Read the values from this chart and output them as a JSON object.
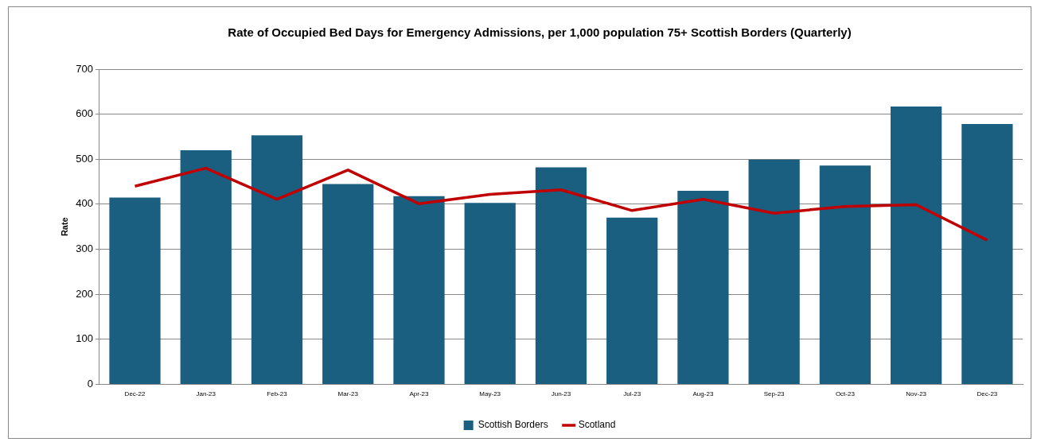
{
  "chart_data": {
    "type": "bar",
    "title": "Rate of Occupied Bed Days for Emergency Admissions, per 1,000 population 75+ Scottish Borders (Quarterly)",
    "ylabel": "Rate",
    "categories": [
      "Dec-22",
      "Jan-23",
      "Feb-23",
      "Mar-23",
      "Apr-23",
      "May-23",
      "Jun-23",
      "Jul-23",
      "Aug-23",
      "Sep-23",
      "Oct-23",
      "Nov-23",
      "Dec-23"
    ],
    "series": [
      {
        "name": "Scottish Borders",
        "color": "#1a5f80",
        "values": [
          415,
          520,
          553,
          445,
          418,
          403,
          482,
          370,
          430,
          499,
          486,
          617,
          578
        ]
      },
      {
        "name": "Scotland",
        "type": "line",
        "color": "#c00000",
        "values": [
          440,
          480,
          411,
          476,
          401,
          422,
          432,
          386,
          411,
          380,
          395,
          399,
          320
        ]
      }
    ],
    "ylim": [
      0,
      700
    ],
    "yticks": [
      0,
      100,
      200,
      300,
      400,
      500,
      600,
      700
    ],
    "grid": "y",
    "legend": "bottom",
    "marker": "none"
  }
}
